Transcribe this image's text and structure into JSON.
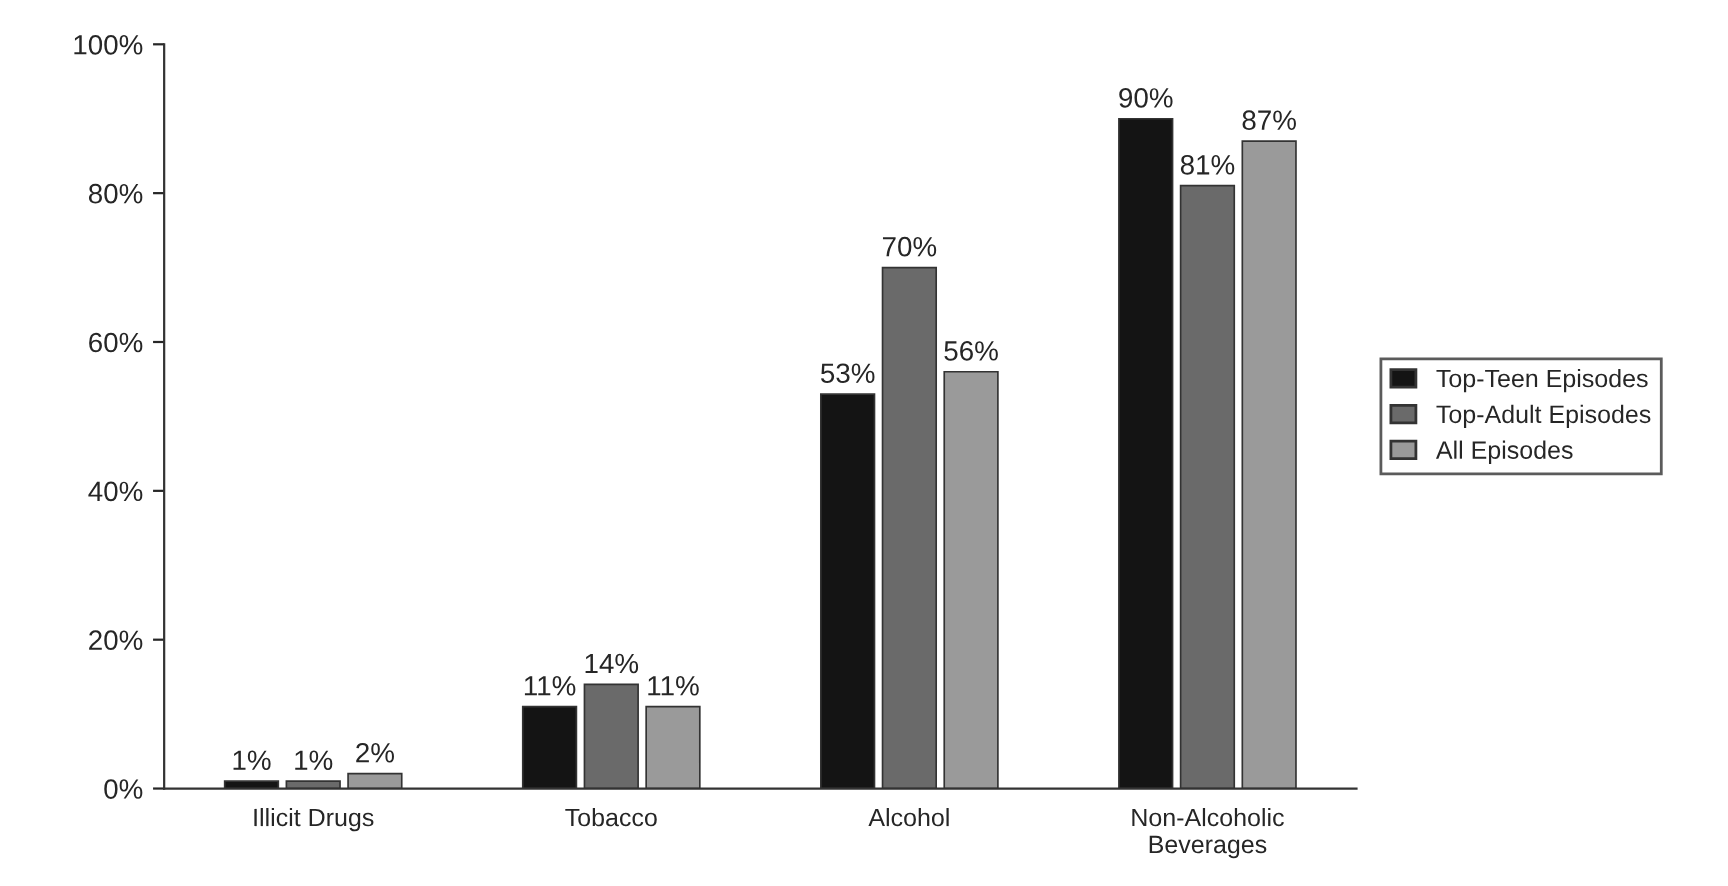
{
  "chart_data": {
    "type": "bar",
    "categories": [
      "Illicit Drugs",
      "Tobacco",
      "Alcohol",
      "Non-Alcoholic\nBeverages"
    ],
    "series": [
      {
        "name": "Top-Teen Episodes",
        "color": "#141414",
        "values": [
          1,
          11,
          53,
          90
        ]
      },
      {
        "name": "Top-Adult Episodes",
        "color": "#6a6a6a",
        "values": [
          1,
          14,
          70,
          81
        ]
      },
      {
        "name": "All Episodes",
        "color": "#9a9a9a",
        "values": [
          2,
          11,
          56,
          87
        ]
      }
    ],
    "ylim": [
      0,
      100
    ],
    "yticks": [
      {
        "value": 0,
        "label": "0%"
      },
      {
        "value": 20,
        "label": "20%"
      },
      {
        "value": 40,
        "label": "40%"
      },
      {
        "value": 60,
        "label": "60%"
      },
      {
        "value": 80,
        "label": "80%"
      },
      {
        "value": 100,
        "label": "100%"
      }
    ],
    "value_labels": [
      [
        "1%",
        "11%",
        "53%",
        "90%"
      ],
      [
        "1%",
        "14%",
        "70%",
        "81%"
      ],
      [
        "2%",
        "11%",
        "56%",
        "87%"
      ]
    ],
    "grid": false,
    "legend": "right"
  }
}
